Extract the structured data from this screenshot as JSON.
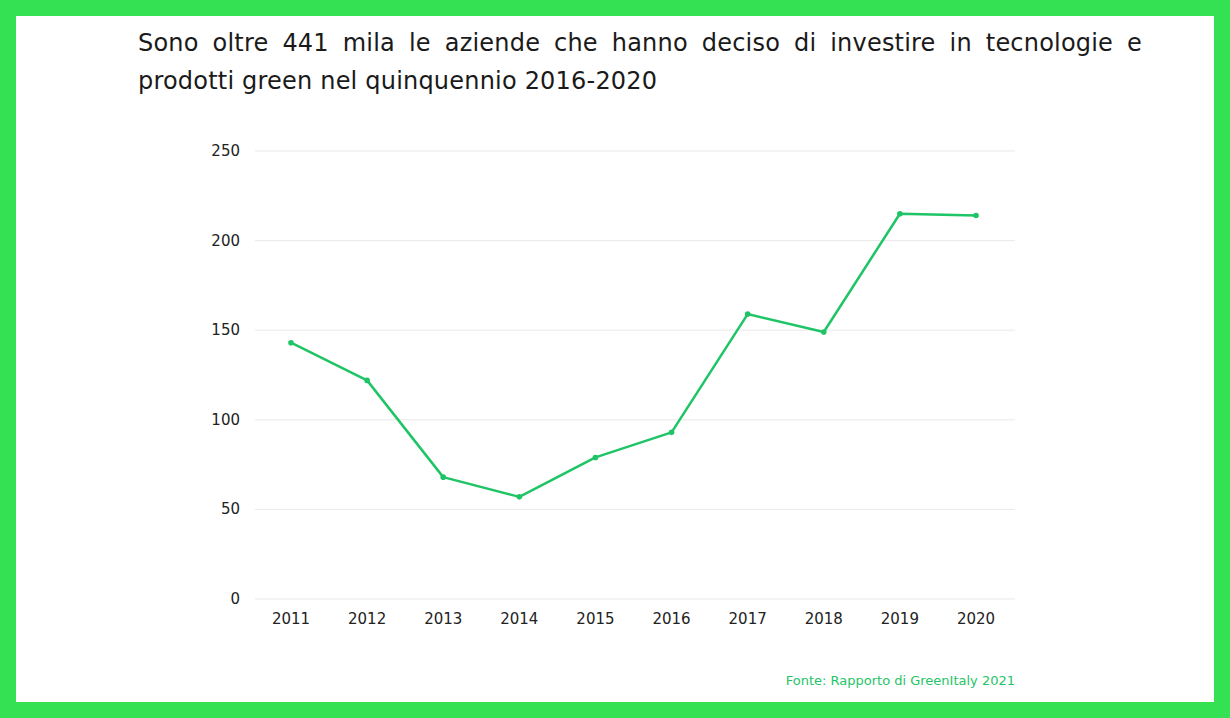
{
  "chart_data": {
    "type": "line",
    "title": "Sono oltre 441 mila le aziende che hanno deciso di investire in tecnologie e prodotti green nel quinquennio 2016-2020",
    "categories": [
      "2011",
      "2012",
      "2013",
      "2014",
      "2015",
      "2016",
      "2017",
      "2018",
      "2019",
      "2020"
    ],
    "values": [
      143,
      122,
      68,
      57,
      79,
      93,
      159,
      149,
      215,
      214
    ],
    "color": "#1fc466",
    "marker": "circle",
    "ylim": [
      0,
      250
    ],
    "yticks": [
      0,
      50,
      100,
      150,
      200,
      250
    ],
    "grid": true,
    "source": "Fonte: Rapporto di GreenItaly 2021"
  }
}
